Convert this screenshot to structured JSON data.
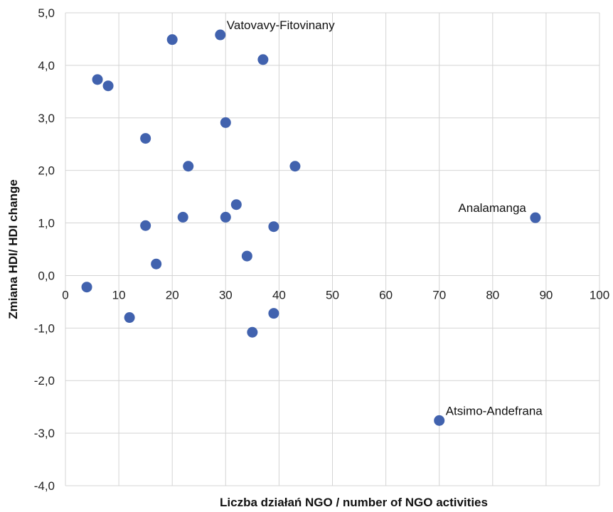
{
  "chart_data": {
    "type": "scatter",
    "xlabel": "Liczba działań NGO / number of NGO activities",
    "ylabel": "Zmiana HDI/ HDI change",
    "xlim": [
      0,
      100
    ],
    "ylim": [
      -4,
      5
    ],
    "x_ticks": [
      "0",
      "10",
      "20",
      "30",
      "40",
      "50",
      "60",
      "70",
      "80",
      "90",
      "100"
    ],
    "y_ticks": [
      "5,0",
      "4,0",
      "3,0",
      "2,0",
      "1,0",
      "0,0",
      "-1,0",
      "-2,0",
      "-3,0",
      "-4,0"
    ],
    "grid": true,
    "marker_color": "#4162ae",
    "points": [
      {
        "x": 4,
        "y": -0.22
      },
      {
        "x": 6,
        "y": 3.73
      },
      {
        "x": 8,
        "y": 3.61
      },
      {
        "x": 12,
        "y": -0.8
      },
      {
        "x": 15,
        "y": 2.61
      },
      {
        "x": 15,
        "y": 0.95
      },
      {
        "x": 17,
        "y": 0.22
      },
      {
        "x": 20,
        "y": 4.49
      },
      {
        "x": 22,
        "y": 1.11
      },
      {
        "x": 23,
        "y": 2.08
      },
      {
        "x": 29,
        "y": 4.58
      },
      {
        "x": 30,
        "y": 2.91
      },
      {
        "x": 30,
        "y": 1.11
      },
      {
        "x": 32,
        "y": 1.35
      },
      {
        "x": 34,
        "y": 0.37
      },
      {
        "x": 35,
        "y": -1.08
      },
      {
        "x": 37,
        "y": 4.11
      },
      {
        "x": 39,
        "y": 0.93
      },
      {
        "x": 39,
        "y": -0.72
      },
      {
        "x": 43,
        "y": 2.08
      },
      {
        "x": 70,
        "y": -2.76
      },
      {
        "x": 88,
        "y": 1.1
      }
    ],
    "annotations": [
      {
        "label": "Vatovavy-Fitovinany",
        "x": 29,
        "y": 4.58,
        "side": "right"
      },
      {
        "label": "Analamanga",
        "x": 88,
        "y": 1.1,
        "side": "left"
      },
      {
        "label": "Atsimo-Andefrana",
        "x": 70,
        "y": -2.76,
        "side": "right"
      }
    ]
  }
}
